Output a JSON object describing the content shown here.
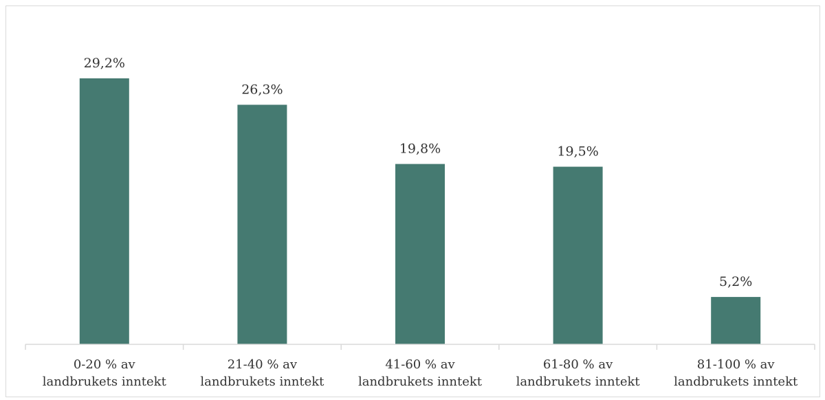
{
  "chart_data": {
    "type": "bar",
    "categories": [
      [
        "0-20 % av",
        "landbrukets inntekt"
      ],
      [
        "21-40 % av",
        "landbrukets inntekt"
      ],
      [
        "41-60 % av",
        "landbrukets inntekt"
      ],
      [
        "61-80 % av",
        "landbrukets inntekt"
      ],
      [
        "81-100 % av",
        "landbrukets inntekt"
      ]
    ],
    "values": [
      29.2,
      26.3,
      19.8,
      19.5,
      5.2
    ],
    "value_labels": [
      "29,2%",
      "26,3%",
      "19,8%",
      "19,5%",
      "5,2%"
    ],
    "title": "",
    "xlabel": "",
    "ylabel": "",
    "ylim": [
      0,
      29.2
    ],
    "grid": false,
    "legend": "none",
    "bar_color": "#457a71",
    "axis_color": "#d9d9d9"
  }
}
